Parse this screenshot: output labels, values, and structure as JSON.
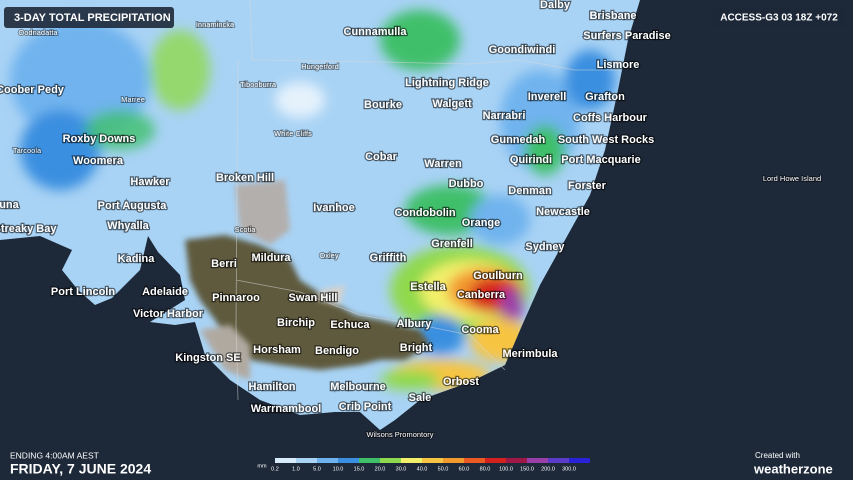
{
  "header": {
    "title": "3-DAY TOTAL PRECIPITATION",
    "model": "ACCESS-G3 03 18Z +072"
  },
  "places": [
    {
      "label": "Dalby"
    },
    {
      "label": "Brisbane"
    },
    {
      "label": "Cunnamulla"
    },
    {
      "label": "Goondiwindi"
    },
    {
      "label": "Surfers Paradise"
    },
    {
      "label": "Lismore"
    },
    {
      "label": "Lightning Ridge"
    },
    {
      "label": "Coober Pedy"
    },
    {
      "label": "Inverell"
    },
    {
      "label": "Grafton"
    },
    {
      "label": "Bourke"
    },
    {
      "label": "Walgett"
    },
    {
      "label": "Coffs Harbour"
    },
    {
      "label": "Narrabri"
    },
    {
      "label": "Roxby Downs"
    },
    {
      "label": "Gunnedah"
    },
    {
      "label": "South West Rocks"
    },
    {
      "label": "Woomera"
    },
    {
      "label": "Cobar"
    },
    {
      "label": "Quirindi"
    },
    {
      "label": "Port Macquarie"
    },
    {
      "label": "Warren"
    },
    {
      "label": "Hawker"
    },
    {
      "label": "Broken Hill"
    },
    {
      "label": "Dubbo"
    },
    {
      "label": "Denman"
    },
    {
      "label": "Forster"
    },
    {
      "label": "Port Augusta"
    },
    {
      "label": "Ivanhoe"
    },
    {
      "label": "Condobolin"
    },
    {
      "label": "Newcastle"
    },
    {
      "label": "Whyalla"
    },
    {
      "label": "Orange"
    },
    {
      "label": "Streaky Bay"
    },
    {
      "label": "Grenfell"
    },
    {
      "label": "Sydney"
    },
    {
      "label": "Kadina"
    },
    {
      "label": "Berri"
    },
    {
      "label": "Mildura"
    },
    {
      "label": "Griffith"
    },
    {
      "label": "Goulburn"
    },
    {
      "label": "Estella"
    },
    {
      "label": "Port Lincoln"
    },
    {
      "label": "Adelaide"
    },
    {
      "label": "Canberra"
    },
    {
      "label": "Pinnaroo"
    },
    {
      "label": "Swan Hill"
    },
    {
      "label": "Victor Harbor"
    },
    {
      "label": "Birchip"
    },
    {
      "label": "Echuca"
    },
    {
      "label": "Albury"
    },
    {
      "label": "Cooma"
    },
    {
      "label": "Horsham"
    },
    {
      "label": "Bendigo"
    },
    {
      "label": "Bright"
    },
    {
      "label": "Merimbula"
    },
    {
      "label": "Kingston SE"
    },
    {
      "label": "Orbost"
    },
    {
      "label": "Hamilton"
    },
    {
      "label": "Melbourne"
    },
    {
      "label": "Sale"
    },
    {
      "label": "Warrnambool"
    },
    {
      "label": "Crib Point"
    },
    {
      "label": "Duna"
    }
  ],
  "minor_places": [
    {
      "label": "Innamincka"
    },
    {
      "label": "Oodnadatta"
    },
    {
      "label": "Hungerford"
    },
    {
      "label": "Tibooburra"
    },
    {
      "label": "Marree"
    },
    {
      "label": "White Cliffs"
    },
    {
      "label": "Tarcoola"
    },
    {
      "label": "Lord Howe Island"
    },
    {
      "label": "Scotia"
    },
    {
      "label": "Oxley"
    },
    {
      "label": "Wilsons Promontory"
    }
  ],
  "footer": {
    "ending": "ENDING 4:00AM AEST",
    "date": "FRIDAY, 7 JUNE 2024",
    "created": "Created with",
    "brand": "weatherzone"
  },
  "legend": {
    "unit": "mm",
    "items": [
      {
        "label": "0.2",
        "color": "#d8ecfb"
      },
      {
        "label": "1.0",
        "color": "#a9d3f5"
      },
      {
        "label": "5.0",
        "color": "#6fb3ee"
      },
      {
        "label": "10.0",
        "color": "#3a8fe0"
      },
      {
        "label": "15.0",
        "color": "#3fbf6a"
      },
      {
        "label": "20.0",
        "color": "#8fd94e"
      },
      {
        "label": "30.0",
        "color": "#f2f06a"
      },
      {
        "label": "40.0",
        "color": "#f7c443"
      },
      {
        "label": "50.0",
        "color": "#f39a2e"
      },
      {
        "label": "60.0",
        "color": "#ec5a24"
      },
      {
        "label": "80.0",
        "color": "#d4201f"
      },
      {
        "label": "100.0",
        "color": "#a01848"
      },
      {
        "label": "150.0",
        "color": "#9b3fa8"
      },
      {
        "label": "200.0",
        "color": "#5a3cc8"
      },
      {
        "label": "300.0",
        "color": "#2a22d8"
      }
    ]
  }
}
